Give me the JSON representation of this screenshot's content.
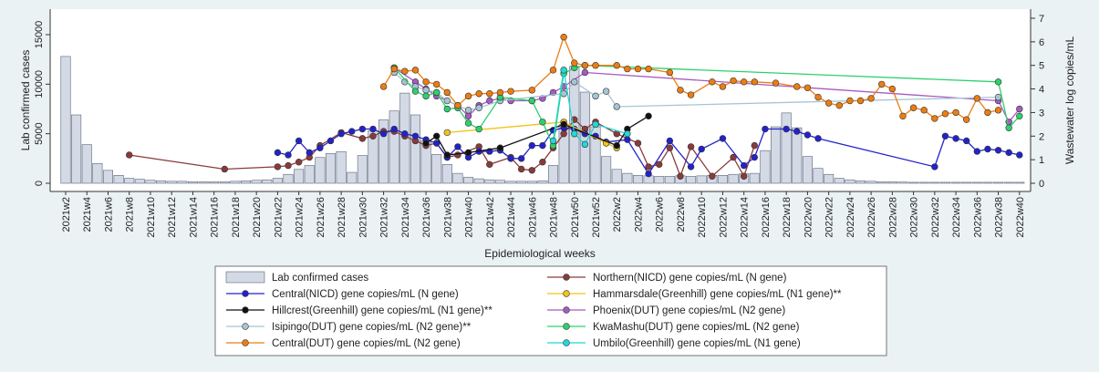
{
  "chart_data": {
    "type": "bar",
    "x_label": "Epidemiological weeks",
    "y_label": "Lab confirmed cases",
    "y2_label": "Wastewater log copies/mL",
    "categories": [
      "2021w2",
      null,
      "2021w4",
      null,
      "2021w6",
      null,
      "2021w8",
      null,
      "2021w10",
      null,
      "2021w12",
      null,
      "2021w14",
      null,
      "2021w16",
      null,
      "2021w18",
      null,
      "2021w20",
      null,
      "2021w22",
      null,
      "2021w24",
      null,
      "2021w26",
      null,
      "2021w28",
      null,
      "2021w30",
      null,
      "2021w32",
      null,
      "2021w34",
      null,
      "2021w36",
      null,
      "2021w38",
      null,
      "2021w40",
      null,
      "2021w42",
      null,
      "2021w44",
      null,
      "2021w46",
      null,
      "2021w48",
      null,
      "2021w50",
      null,
      "2021w52",
      null,
      "2022w2",
      null,
      "2022w4",
      null,
      "2022w6",
      null,
      "2022w8",
      null,
      "2022w10",
      null,
      "2022w12",
      null,
      "2022w14",
      null,
      "2022w16",
      null,
      "2022w18",
      null,
      "2022w20",
      null,
      "2022w22",
      null,
      "2022w24",
      null,
      "2022w26",
      null,
      "2022w28",
      null,
      "2022w30",
      null,
      "2022w32",
      null,
      "2022w34",
      null,
      "2022w36",
      null,
      "2022w38",
      null,
      "2022w40"
    ],
    "ylim": [
      0,
      15000
    ],
    "yticks": [
      0,
      5000,
      10000,
      15000
    ],
    "y2lim": [
      0,
      7
    ],
    "y2ticks": [
      0,
      1,
      2,
      3,
      4,
      5,
      6,
      7
    ],
    "series": [
      {
        "name": "Lab confirmed cases",
        "type": "bar",
        "color": "#d3dae6",
        "values": [
          12800,
          6900,
          3900,
          2000,
          1300,
          800,
          500,
          400,
          300,
          250,
          200,
          200,
          150,
          150,
          150,
          150,
          200,
          250,
          300,
          350,
          500,
          900,
          1400,
          1800,
          2600,
          3000,
          3200,
          1100,
          2800,
          5300,
          6400,
          7300,
          9100,
          6900,
          4300,
          2900,
          1900,
          1000,
          600,
          450,
          350,
          300,
          200,
          200,
          200,
          250,
          1800,
          5900,
          11800,
          9200,
          5700,
          2700,
          1400,
          1000,
          800,
          750,
          700,
          700,
          750,
          700,
          750,
          800,
          800,
          900,
          950,
          1000,
          3300,
          5700,
          7100,
          5600,
          2700,
          1500,
          900,
          500,
          350,
          250,
          200,
          150,
          150,
          120,
          100,
          100,
          100,
          100,
          100,
          100,
          100,
          100,
          100,
          100,
          100
        ]
      },
      {
        "name": "Northern(NICD) gene copies/mL (N gene)",
        "type": "line",
        "axis": "y2",
        "color": "#8b3a3a",
        "x": [
          "2021w8",
          "2021w17",
          "2021w22",
          "2021w23",
          "2021w24",
          "2021w25",
          "2021w26",
          "2021w28",
          "2021w30",
          "2021w31",
          "2021w32",
          "2021w33",
          "2021w34",
          "2021w35",
          "2021w36",
          "2021w37",
          "2021w38",
          "2021w39",
          "2021w41",
          "2021w42",
          "2021w44",
          "2021w45",
          "2021w46",
          "2021w47",
          "2021w48",
          "2021w49",
          "2021w50",
          "2021w51",
          "2021w52",
          "2022w2",
          "2022w4",
          "2022w5",
          "2022w6",
          "2022w7",
          "2022w8",
          "2022w9",
          "2022w11",
          "2022w13",
          "2022w14",
          "2022w15"
        ],
        "values": [
          1.2,
          0.6,
          0.7,
          0.75,
          0.9,
          1.1,
          1.6,
          2.15,
          1.9,
          2.0,
          2.2,
          2.2,
          2.0,
          1.8,
          1.6,
          1.7,
          1.1,
          1.2,
          1.55,
          0.8,
          1.1,
          0.6,
          0.55,
          0.9,
          1.5,
          2.1,
          2.7,
          2.3,
          2.6,
          2.1,
          1.7,
          0.7,
          0.8,
          1.5,
          0.3,
          1.55,
          0.3,
          1.1,
          0.3,
          1.6
        ]
      },
      {
        "name": "Central(NICD) gene copies/mL (N gene)",
        "type": "line",
        "axis": "y2",
        "color": "#2222cc",
        "x": [
          "2021w22",
          "2021w23",
          "2021w24",
          "2021w25",
          "2021w26",
          "2021w27",
          "2021w28",
          "2021w29",
          "2021w30",
          "2021w31",
          "2021w32",
          "2021w33",
          "2021w34",
          "2021w35",
          "2021w36",
          "2021w37",
          "2021w38",
          "2021w39",
          "2021w40",
          "2021w41",
          "2021w42",
          "2021w43",
          "2021w44",
          "2021w45",
          "2021w46",
          "2021w47",
          "2021w48",
          "2021w49",
          "2021w50",
          "2021w51",
          "2021w52",
          "2022w1",
          "2022w3",
          "2022w5",
          "2022w7",
          "2022w9",
          "2022w10",
          "2022w12",
          "2022w14",
          "2022w15",
          "2022w16",
          "2022w18",
          "2022w19",
          "2022w20",
          "2022w21",
          "2022w32",
          "2022w33",
          "2022w34",
          "2022w35",
          "2022w36",
          "2022w37",
          "2022w38",
          "2022w39",
          "2022w40"
        ],
        "values": [
          1.3,
          1.2,
          1.8,
          1.3,
          1.5,
          1.8,
          2.1,
          2.2,
          2.3,
          2.3,
          2.1,
          2.3,
          2.1,
          2.0,
          1.85,
          1.7,
          1.1,
          1.55,
          1.1,
          1.35,
          1.35,
          1.4,
          1.05,
          1.05,
          1.6,
          1.6,
          2.25,
          2.35,
          2.3,
          2.1,
          2.0,
          1.75,
          1.85,
          0.4,
          1.8,
          0.7,
          1.45,
          1.9,
          0.75,
          1.1,
          2.3,
          2.3,
          2.2,
          2.05,
          1.9,
          0.7,
          2.0,
          1.9,
          1.8,
          1.35,
          1.45,
          1.4,
          1.3,
          1.2
        ]
      },
      {
        "name": "Hammarsdale(Greenhill) gene copies/mL (N1 gene)**",
        "type": "line",
        "axis": "y2",
        "color": "#f0c419",
        "x": [
          "2021w38",
          "2021w49",
          "2022w1",
          "2022w2"
        ],
        "values": [
          2.15,
          2.6,
          1.7,
          1.5
        ]
      },
      {
        "name": "Hillcrest(Greenhill) gene copies/mL (N1 gene)**",
        "type": "line",
        "axis": "y2",
        "color": "#111111",
        "x": [
          "2021w36",
          "2021w37",
          "2021w38",
          "2021w40",
          "2021w43",
          "2021w49",
          "2022w2",
          "2022w3",
          "2022w5"
        ],
        "values": [
          1.7,
          2.0,
          1.2,
          1.3,
          1.5,
          2.5,
          1.6,
          2.3,
          2.85
        ]
      },
      {
        "name": "Phoenix(DUT) gene copies/mL (N2 gene)",
        "type": "line",
        "axis": "y2",
        "color": "#a55bc2",
        "x": [
          "2021w33",
          "2021w35",
          "2021w36",
          "2021w37",
          "2021w39",
          "2021w40",
          "2021w41",
          "2021w42",
          "2021w43",
          "2021w44",
          "2021w46",
          "2021w47",
          "2021w48",
          "2021w49",
          "2021w51",
          "2022w38",
          "2022w39",
          "2022w40"
        ],
        "values": [
          4.9,
          4.3,
          4.0,
          3.7,
          3.3,
          2.85,
          3.3,
          3.5,
          3.6,
          3.5,
          3.5,
          3.6,
          3.85,
          4.1,
          4.7,
          3.5,
          2.6,
          3.15
        ]
      },
      {
        "name": "Isipingo(DUT) gene copies/mL (N2 gene)**",
        "type": "line",
        "axis": "y2",
        "color": "#a8c4d4",
        "x": [
          "2021w33",
          "2021w34",
          "2021w35",
          "2021w36",
          "2021w37",
          "2021w38",
          "2021w39",
          "2021w40",
          "2021w41",
          "2021w43",
          "2021w49",
          "2021w50",
          "2021w52",
          "2022w1",
          "2022w2",
          "2022w38"
        ],
        "values": [
          4.7,
          4.3,
          4.1,
          3.95,
          3.85,
          3.5,
          3.3,
          3.1,
          3.2,
          3.5,
          3.8,
          4.3,
          3.7,
          3.9,
          3.25,
          3.65
        ]
      },
      {
        "name": "KwaMashu(DUT) gene copies/mL (N2 gene)",
        "type": "line",
        "axis": "y2",
        "color": "#2ed06e",
        "x": [
          "2021w33",
          "2021w35",
          "2021w36",
          "2021w37",
          "2021w38",
          "2021w39",
          "2021w40",
          "2021w41",
          "2021w43",
          "2021w46",
          "2021w47",
          "2021w48",
          "2021w49",
          "2021w50",
          "2021w51",
          "2022w38",
          "2022w39",
          "2022w40"
        ],
        "values": [
          4.9,
          3.9,
          3.7,
          3.85,
          3.15,
          3.2,
          2.55,
          2.3,
          3.65,
          3.5,
          2.6,
          1.6,
          4.65,
          4.9,
          5.0,
          4.3,
          2.35,
          2.85
        ]
      },
      {
        "name": "Central(DUT) gene copies/mL (N2 gene)",
        "type": "line",
        "axis": "y2",
        "color": "#ec7d12",
        "x": [
          "2021w32",
          "2021w33",
          "2021w34",
          "2021w35",
          "2021w36",
          "2021w37",
          "2021w38",
          "2021w39",
          "2021w40",
          "2021w41",
          "2021w42",
          "2021w43",
          "2021w44",
          "2021w46",
          "2021w48",
          "2021w49",
          "2021w50",
          "2021w51",
          "2021w52",
          "2022w2",
          "2022w3",
          "2022w4",
          "2022w5",
          "2022w7",
          "2022w8",
          "2022w9",
          "2022w11",
          "2022w12",
          "2022w13",
          "2022w14",
          "2022w15",
          "2022w17",
          "2022w19",
          "2022w20",
          "2022w21",
          "2022w22",
          "2022w23",
          "2022w24",
          "2022w25",
          "2022w26",
          "2022w27",
          "2022w28",
          "2022w29",
          "2022w30",
          "2022w31",
          "2022w32",
          "2022w33",
          "2022w34",
          "2022w35",
          "2022w36",
          "2022w37",
          "2022w38"
        ],
        "values": [
          4.1,
          4.85,
          4.75,
          4.8,
          4.3,
          4.2,
          3.85,
          3.3,
          3.7,
          3.8,
          3.8,
          3.85,
          3.9,
          3.95,
          4.8,
          6.2,
          5.1,
          5.0,
          5.0,
          5.0,
          4.85,
          4.85,
          4.85,
          4.7,
          3.95,
          3.75,
          4.3,
          4.1,
          4.35,
          4.3,
          4.3,
          4.25,
          4.1,
          4.05,
          3.65,
          3.4,
          3.3,
          3.5,
          3.5,
          3.6,
          4.2,
          4.0,
          2.85,
          3.2,
          3.1,
          2.75,
          2.95,
          3.0,
          2.7,
          3.6,
          3.0,
          3.1
        ]
      },
      {
        "name": "Umbilo(Greenhill) gene copies/mL (N1 gene)",
        "type": "line",
        "axis": "y2",
        "color": "#22d8d8",
        "x": [
          "2021w48",
          "2021w49",
          "2021w50",
          "2021w51",
          "2021w52",
          "2022w3"
        ],
        "values": [
          1.8,
          4.8,
          2.1,
          1.65,
          2.5,
          2.1
        ]
      }
    ]
  }
}
